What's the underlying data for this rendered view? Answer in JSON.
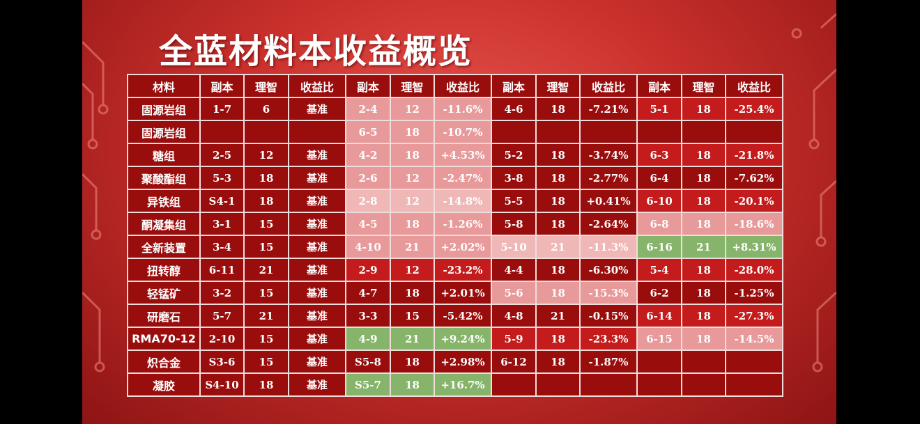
{
  "title": "全蓝材料本收益概览",
  "colors": {
    "dark": "#9a0d0d",
    "red": "#c41c1c",
    "pink": "#e89a9a",
    "light": "#f0b7b7",
    "green": "#86b46a",
    "border": "#f1dcdc"
  },
  "table": {
    "headers": [
      "材料",
      "副本",
      "理智",
      "收益比",
      "副本",
      "理智",
      "收益比",
      "副本",
      "理智",
      "收益比",
      "副本",
      "理智",
      "收益比"
    ],
    "rows": [
      {
        "material": "固源岩组",
        "cells": [
          [
            "1-7",
            "dark"
          ],
          [
            "6",
            "dark"
          ],
          [
            "基准",
            "dark"
          ],
          [
            "2-4",
            "pink"
          ],
          [
            "12",
            "pink"
          ],
          [
            "-11.6%",
            "pink"
          ],
          [
            "4-6",
            "dark"
          ],
          [
            "18",
            "dark"
          ],
          [
            "-7.21%",
            "dark"
          ],
          [
            "5-1",
            "red"
          ],
          [
            "18",
            "red"
          ],
          [
            "-25.4%",
            "red"
          ]
        ]
      },
      {
        "material": "固源岩组",
        "cells": [
          [
            "",
            "dark"
          ],
          [
            "",
            "dark"
          ],
          [
            "",
            "dark"
          ],
          [
            "6-5",
            "pink"
          ],
          [
            "18",
            "pink"
          ],
          [
            "-10.7%",
            "pink"
          ],
          [
            "",
            "dark"
          ],
          [
            "",
            "dark"
          ],
          [
            "",
            "dark"
          ],
          [
            "",
            "dark"
          ],
          [
            "",
            "dark"
          ],
          [
            "",
            "dark"
          ]
        ]
      },
      {
        "material": "糖组",
        "cells": [
          [
            "2-5",
            "dark"
          ],
          [
            "12",
            "dark"
          ],
          [
            "基准",
            "dark"
          ],
          [
            "4-2",
            "pink"
          ],
          [
            "18",
            "pink"
          ],
          [
            "+4.53%",
            "pink"
          ],
          [
            "5-2",
            "dark"
          ],
          [
            "18",
            "dark"
          ],
          [
            "-3.74%",
            "dark"
          ],
          [
            "6-3",
            "red"
          ],
          [
            "18",
            "red"
          ],
          [
            "-21.8%",
            "red"
          ]
        ]
      },
      {
        "material": "聚酸酯组",
        "cells": [
          [
            "5-3",
            "dark"
          ],
          [
            "18",
            "dark"
          ],
          [
            "基准",
            "dark"
          ],
          [
            "2-6",
            "pink"
          ],
          [
            "12",
            "pink"
          ],
          [
            "-2.47%",
            "pink"
          ],
          [
            "3-8",
            "dark"
          ],
          [
            "18",
            "dark"
          ],
          [
            "-2.77%",
            "dark"
          ],
          [
            "6-4",
            "dark"
          ],
          [
            "18",
            "dark"
          ],
          [
            "-7.62%",
            "dark"
          ]
        ]
      },
      {
        "material": "异铁组",
        "cells": [
          [
            "S4-1",
            "dark"
          ],
          [
            "18",
            "dark"
          ],
          [
            "基准",
            "dark"
          ],
          [
            "2-8",
            "light"
          ],
          [
            "12",
            "light"
          ],
          [
            "-14.8%",
            "light"
          ],
          [
            "5-5",
            "dark"
          ],
          [
            "18",
            "dark"
          ],
          [
            "+0.41%",
            "dark"
          ],
          [
            "6-10",
            "red"
          ],
          [
            "18",
            "red"
          ],
          [
            "-20.1%",
            "red"
          ]
        ]
      },
      {
        "material": "酮凝集组",
        "cells": [
          [
            "3-1",
            "dark"
          ],
          [
            "15",
            "dark"
          ],
          [
            "基准",
            "dark"
          ],
          [
            "4-5",
            "pink"
          ],
          [
            "18",
            "pink"
          ],
          [
            "-1.26%",
            "pink"
          ],
          [
            "5-8",
            "dark"
          ],
          [
            "18",
            "dark"
          ],
          [
            "-2.64%",
            "dark"
          ],
          [
            "6-8",
            "pink"
          ],
          [
            "18",
            "pink"
          ],
          [
            "-18.6%",
            "pink"
          ]
        ]
      },
      {
        "material": "全新装置",
        "cells": [
          [
            "3-4",
            "dark"
          ],
          [
            "15",
            "dark"
          ],
          [
            "基准",
            "dark"
          ],
          [
            "4-10",
            "pink"
          ],
          [
            "21",
            "pink"
          ],
          [
            "+2.02%",
            "pink"
          ],
          [
            "5-10",
            "light"
          ],
          [
            "21",
            "light"
          ],
          [
            "-11.3%",
            "light"
          ],
          [
            "6-16",
            "green"
          ],
          [
            "21",
            "green"
          ],
          [
            "+8.31%",
            "green"
          ]
        ]
      },
      {
        "material": "扭转醇",
        "cells": [
          [
            "6-11",
            "dark"
          ],
          [
            "21",
            "dark"
          ],
          [
            "基准",
            "dark"
          ],
          [
            "2-9",
            "red"
          ],
          [
            "12",
            "red"
          ],
          [
            "-23.2%",
            "red"
          ],
          [
            "4-4",
            "dark"
          ],
          [
            "18",
            "dark"
          ],
          [
            "-6.30%",
            "dark"
          ],
          [
            "5-4",
            "red"
          ],
          [
            "18",
            "red"
          ],
          [
            "-28.0%",
            "red"
          ]
        ]
      },
      {
        "material": "轻锰矿",
        "cells": [
          [
            "3-2",
            "dark"
          ],
          [
            "15",
            "dark"
          ],
          [
            "基准",
            "dark"
          ],
          [
            "4-7",
            "dark"
          ],
          [
            "18",
            "dark"
          ],
          [
            "+2.01%",
            "dark"
          ],
          [
            "5-6",
            "pink"
          ],
          [
            "18",
            "pink"
          ],
          [
            "-15.3%",
            "pink"
          ],
          [
            "6-2",
            "dark"
          ],
          [
            "18",
            "dark"
          ],
          [
            "-1.25%",
            "dark"
          ]
        ]
      },
      {
        "material": "研磨石",
        "cells": [
          [
            "5-7",
            "dark"
          ],
          [
            "21",
            "dark"
          ],
          [
            "基准",
            "dark"
          ],
          [
            "3-3",
            "dark"
          ],
          [
            "15",
            "dark"
          ],
          [
            "-5.42%",
            "dark"
          ],
          [
            "4-8",
            "dark"
          ],
          [
            "21",
            "dark"
          ],
          [
            "-0.15%",
            "dark"
          ],
          [
            "6-14",
            "red"
          ],
          [
            "18",
            "red"
          ],
          [
            "-27.3%",
            "red"
          ]
        ]
      },
      {
        "material": "RMA70-12",
        "cells": [
          [
            "2-10",
            "dark"
          ],
          [
            "15",
            "dark"
          ],
          [
            "基准",
            "dark"
          ],
          [
            "4-9",
            "green"
          ],
          [
            "21",
            "green"
          ],
          [
            "+9.24%",
            "green"
          ],
          [
            "5-9",
            "red"
          ],
          [
            "18",
            "red"
          ],
          [
            "-23.3%",
            "red"
          ],
          [
            "6-15",
            "pink"
          ],
          [
            "18",
            "pink"
          ],
          [
            "-14.5%",
            "pink"
          ]
        ]
      },
      {
        "material": "炽合金",
        "cells": [
          [
            "S3-6",
            "dark"
          ],
          [
            "15",
            "dark"
          ],
          [
            "基准",
            "dark"
          ],
          [
            "S5-8",
            "dark"
          ],
          [
            "18",
            "dark"
          ],
          [
            "+2.98%",
            "dark"
          ],
          [
            "6-12",
            "dark"
          ],
          [
            "18",
            "dark"
          ],
          [
            "-1.87%",
            "dark"
          ],
          [
            "",
            "dark"
          ],
          [
            "",
            "dark"
          ],
          [
            "",
            "dark"
          ]
        ]
      },
      {
        "material": "凝胶",
        "cells": [
          [
            "S4-10",
            "dark"
          ],
          [
            "18",
            "dark"
          ],
          [
            "基准",
            "dark"
          ],
          [
            "S5-7",
            "green"
          ],
          [
            "18",
            "green"
          ],
          [
            "+16.7%",
            "green"
          ],
          [
            "",
            "dark"
          ],
          [
            "",
            "dark"
          ],
          [
            "",
            "dark"
          ],
          [
            "",
            "dark"
          ],
          [
            "",
            "dark"
          ],
          [
            "",
            "dark"
          ]
        ]
      }
    ]
  }
}
